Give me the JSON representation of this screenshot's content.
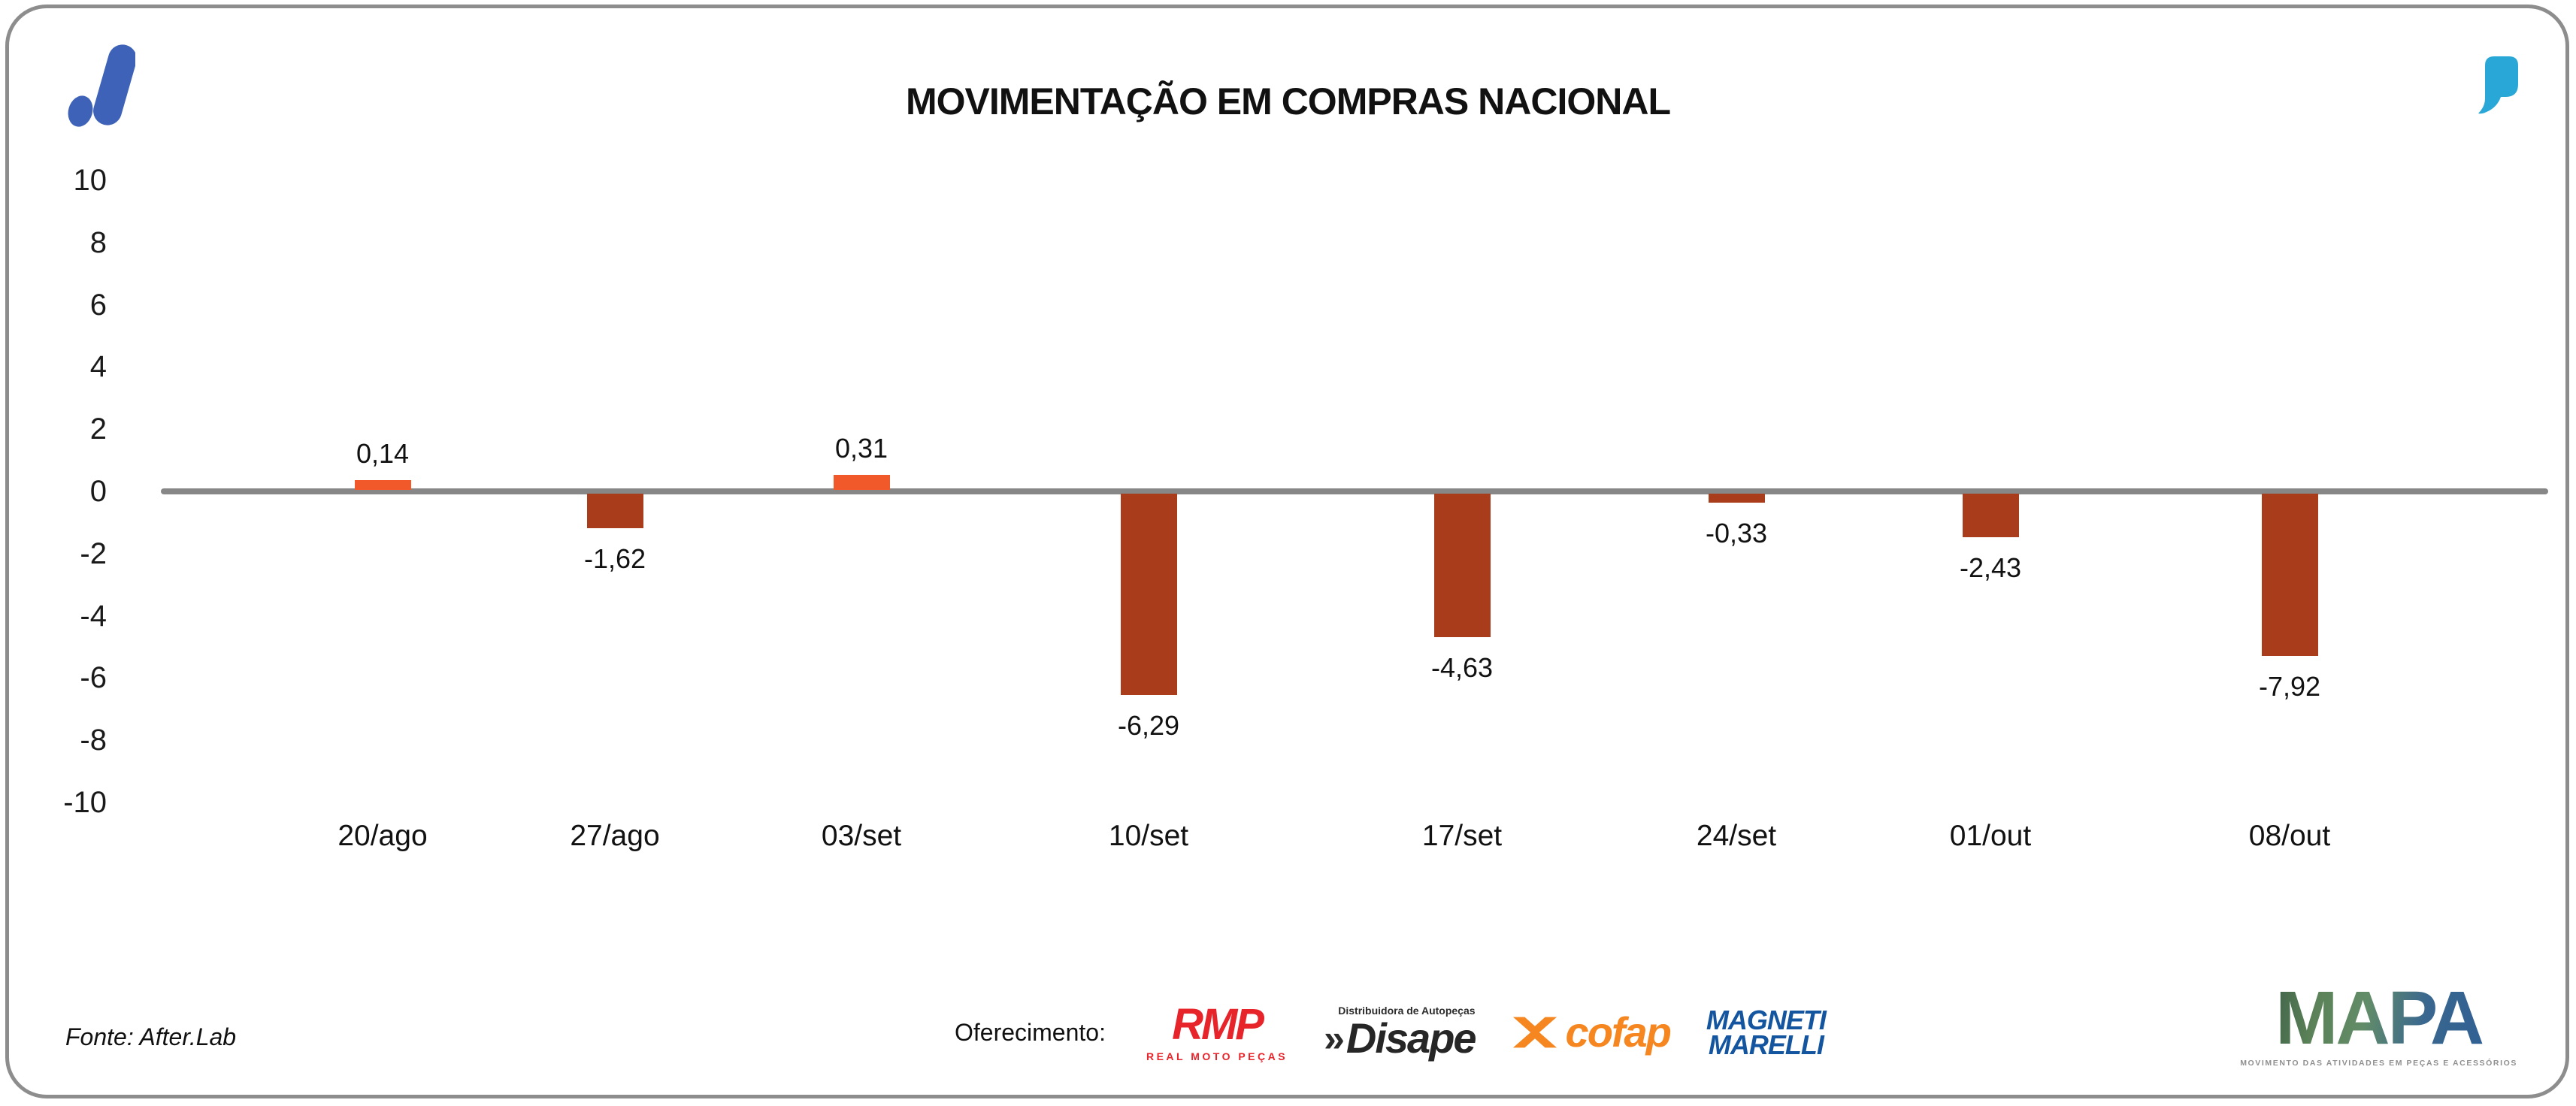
{
  "header": {
    "title": "MOVIMENTAÇÃO EM COMPRAS NACIONAL"
  },
  "chart_data": {
    "type": "bar",
    "title": "MOVIMENTAÇÃO EM COMPRAS NACIONAL",
    "categories": [
      "20/ago",
      "27/ago",
      "03/set",
      "10/set",
      "17/set",
      "24/set",
      "01/out",
      "08/out"
    ],
    "values": [
      0.14,
      -1.62,
      0.31,
      -6.29,
      -4.63,
      -0.33,
      -2.43,
      -7.92
    ],
    "value_labels": [
      "0,14",
      "-1,62",
      "0,31",
      "-6,29",
      "-4,63",
      "-0,33",
      "-2,43",
      "-7,92"
    ],
    "y_ticks": [
      10,
      8,
      6,
      4,
      2,
      0,
      -2,
      -4,
      -6,
      -8,
      -10
    ],
    "ylim": [
      -10,
      10
    ],
    "grid": false,
    "legend": "none",
    "colors": {
      "positive_bar": "#F1592A",
      "negative_bar": "#A93D1B",
      "zero_line": "#878787"
    }
  },
  "footer": {
    "source": "Fonte: After.Lab",
    "sponsor_label": "Oferecimento:",
    "sponsors": [
      {
        "name": "RMP",
        "subtext": "REAL MOTO PEÇAS",
        "color": "#E8242B"
      },
      {
        "name": "Disape",
        "prefix": "»",
        "subtext": "Distribuidora de Autopeças",
        "color": "#262626"
      },
      {
        "name": "cofap",
        "color": "#F6861F"
      },
      {
        "name": "Magneti Marelli",
        "line1": "MAGNETI",
        "line2": "MARELLI",
        "color": "#1455A0"
      }
    ],
    "mapa": {
      "name": "MAPA",
      "tagline": "MOVIMENTO DAS ATIVIDADES EM PEÇAS E ACESSÓRIOS"
    }
  },
  "icons": {
    "top_left": "afterlab-logo",
    "top_right": "quote-mark",
    "cofap_emblem": "crossed-chevrons"
  }
}
